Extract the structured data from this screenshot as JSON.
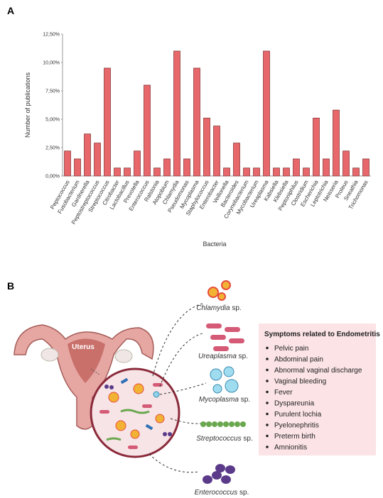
{
  "panel_a": "A",
  "chart_data": {
    "type": "bar",
    "x_label": "Bacteria",
    "y_label": "Number of publications",
    "categories": [
      "Peptococcus",
      "Fusobacterium",
      "Gardnerella",
      "Peptostreptococcus",
      "Streptococcus",
      "Citrobacter",
      "Lactobacillus",
      "Prevotella",
      "Enterococcus",
      "Ralstonia",
      "Atopobium",
      "Chlamydia",
      "Pseudomonas",
      "Mycoplasma",
      "Staphylococcus",
      "Enterobacter",
      "Veillonella",
      "Bacteroides",
      "Corynebacterium",
      "Mycobacterium",
      "Ureaplasma",
      "Kabsiella",
      "Klebsiella",
      "Peptoniphilus",
      "Clostridium",
      "Escherichia",
      "Leptotrichia",
      "Neisseria",
      "Proteus",
      "Sneathia",
      "Trichomonas"
    ],
    "values": [
      2.2,
      1.5,
      3.7,
      2.9,
      9.5,
      0.7,
      0.7,
      2.2,
      8.0,
      0.7,
      1.5,
      11.0,
      1.5,
      9.5,
      5.1,
      4.4,
      0.7,
      2.9,
      0.7,
      0.7,
      11.0,
      0.7,
      0.7,
      1.5,
      0.7,
      5.1,
      1.5,
      5.8,
      2.2,
      0.7,
      1.5
    ],
    "color": "#e8676b",
    "ylim": [
      0,
      12.5
    ],
    "yticks": [
      {
        "value": 0,
        "label": "0,00%"
      },
      {
        "value": 2.5,
        "label": "2,50%"
      },
      {
        "value": 5,
        "label": "5,00%"
      },
      {
        "value": 7.5,
        "label": "7,50%"
      },
      {
        "value": 10,
        "label": "10,00%"
      },
      {
        "value": 12.5,
        "label": "12,50%"
      }
    ],
    "grid": false
  },
  "panel_b": "B",
  "diagram": {
    "uterus_label": "Uterus",
    "organisms": [
      {
        "genus": "Chlamydia",
        "suffix": "sp."
      },
      {
        "genus": "Ureaplasma",
        "suffix": "sp."
      },
      {
        "genus": "Mycoplasma",
        "suffix": "sp."
      },
      {
        "genus": "Streptococcus",
        "suffix": "sp."
      },
      {
        "genus": "Enterococcus",
        "suffix": "sp."
      }
    ],
    "symptoms": {
      "title": "Symptoms related to Endometritis",
      "items": [
        "Pelvic pain",
        "Abdominal pain",
        "Abnormal vaginal discharge",
        "Vaginal bleeding",
        "Fever",
        "Dyspareunia",
        "Purulent lochia",
        "Pyelonephritis",
        "Preterm birth",
        "Amnionitis"
      ]
    }
  }
}
